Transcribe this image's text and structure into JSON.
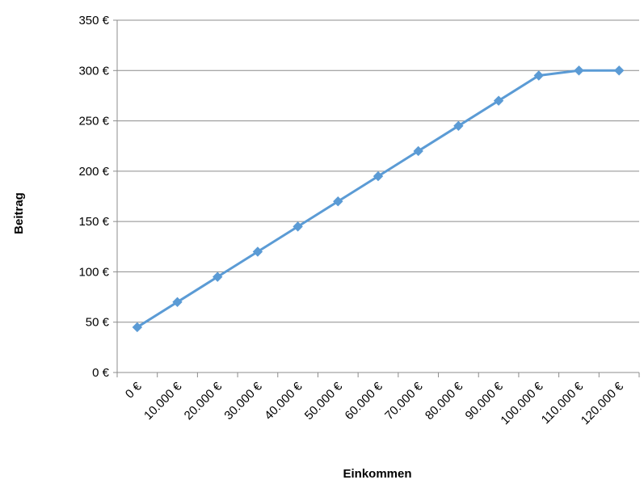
{
  "chart_data": {
    "type": "line",
    "title": "",
    "xlabel": "Einkommen",
    "ylabel": "Beitrag",
    "categories": [
      "0 €",
      "10.000 €",
      "20.000 €",
      "30.000 €",
      "40.000 €",
      "50.000 €",
      "60.000 €",
      "70.000 €",
      "80.000 €",
      "90.000 €",
      "100.000 €",
      "110.000 €",
      "120.000 €"
    ],
    "y_tick_labels": [
      "0 €",
      "50 €",
      "100 €",
      "150 €",
      "200 €",
      "250 €",
      "300 €",
      "350 €"
    ],
    "ylim": [
      0,
      350
    ],
    "x_step": 10000,
    "series": [
      {
        "values": [
          45,
          70,
          95,
          120,
          145,
          170,
          195,
          220,
          245,
          270,
          295,
          300,
          300
        ],
        "color": "#5b9bd5",
        "marker": "diamond"
      }
    ],
    "grid": "horizontal",
    "legend": "none"
  }
}
